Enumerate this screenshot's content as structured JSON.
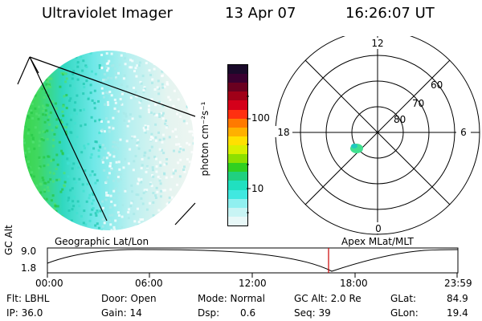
{
  "header": {
    "instrument": "Ultraviolet Imager",
    "date": "13 Apr 07",
    "time": "16:26:07 UT"
  },
  "colorbar": {
    "label": "photon cm⁻²s⁻¹",
    "ticks": [
      "100",
      "10"
    ],
    "colors": [
      "#1a0a2a",
      "#3a0030",
      "#6a0020",
      "#a00018",
      "#d4001a",
      "#ff3010",
      "#ff7a00",
      "#ffb000",
      "#ffe000",
      "#d8f000",
      "#8ce000",
      "#30d020",
      "#20d080",
      "#20e0c0",
      "#40e8e0",
      "#90f0f0",
      "#c8f4f4",
      "#e8f8f8"
    ]
  },
  "polar": {
    "mlt_labels": {
      "top": "12",
      "left": "18",
      "right": "6",
      "bottom": "0"
    },
    "lat_labels": [
      "60",
      "70",
      "80"
    ]
  },
  "timeline": {
    "left_label": "Geographic Lat/Lon",
    "right_label": "Apex MLat/MLT",
    "y_axis_label": "GC Alt",
    "y_ticks": [
      "9.0",
      "1.8"
    ],
    "x_ticks": [
      "00:00",
      "06:00",
      "12:00",
      "18:00",
      "23:59"
    ],
    "current_time_marker": "16:26",
    "marker_color": "#cc0000"
  },
  "info": {
    "filter": "Flt: LBHL",
    "ip": "IP: 36.0",
    "door": "Door: Open",
    "gain": "Gain: 14",
    "mode": "Mode: Normal",
    "dsp_label": "Dsp:",
    "dsp_value": "0.6",
    "gc_alt": "GC Alt: 2.0 Re",
    "seq": "Seq: 39",
    "glat_label": "GLat:",
    "glat_value": "84.9",
    "glon_label": "GLon:",
    "glon_value": "19.4"
  }
}
